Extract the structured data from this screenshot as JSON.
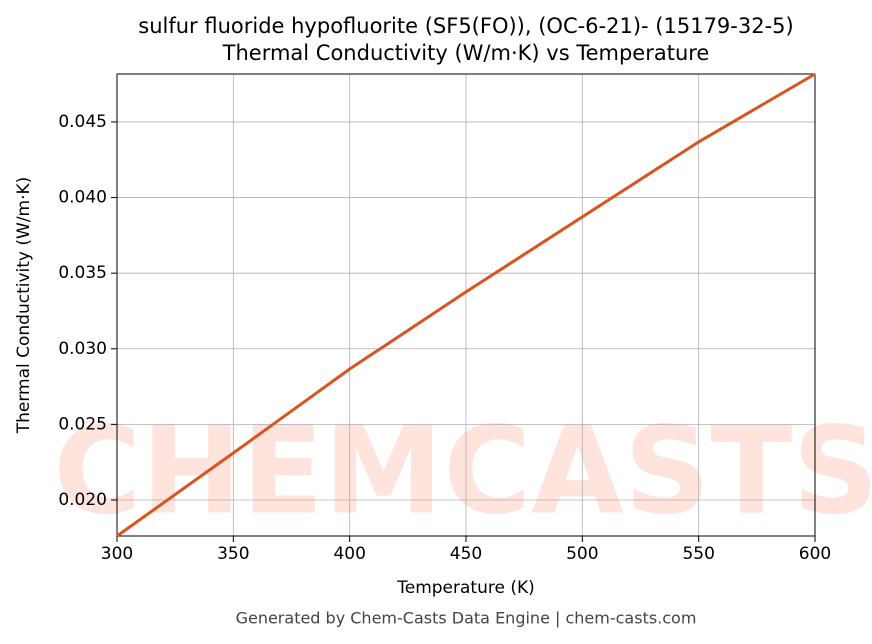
{
  "chart_data": {
    "type": "line",
    "title": "sulfur fluoride hypofluorite (SF5(FO)), (OC-6-21)- (15179-32-5)",
    "subtitle": "Thermal Conductivity (W/m·K) vs Temperature",
    "x_label": "Temperature (K)",
    "y_label": "Thermal Conductivity (W/m·K)",
    "footer": "Generated by Chem-Casts Data Engine | chem-casts.com",
    "watermark": "CHEMCASTS",
    "x": [
      300,
      350,
      400,
      450,
      500,
      550,
      600
    ],
    "series": [
      {
        "name": "Thermal Conductivity",
        "color": "#d9541e",
        "values": [
          0.01762,
          0.02311,
          0.02866,
          0.03376,
          0.03872,
          0.04368,
          0.04817
        ]
      }
    ],
    "xlim": [
      300,
      600
    ],
    "ylim": [
      0.01762,
      0.04817
    ],
    "xticks": [
      300,
      350,
      400,
      450,
      500,
      550,
      600
    ],
    "yticks": [
      {
        "value": 0.02,
        "label": "0.020"
      },
      {
        "value": 0.025,
        "label": "0.025"
      },
      {
        "value": 0.03,
        "label": "0.030"
      },
      {
        "value": 0.035,
        "label": "0.035"
      },
      {
        "value": 0.04,
        "label": "0.040"
      },
      {
        "value": 0.045,
        "label": "0.045"
      }
    ],
    "grid": true
  }
}
